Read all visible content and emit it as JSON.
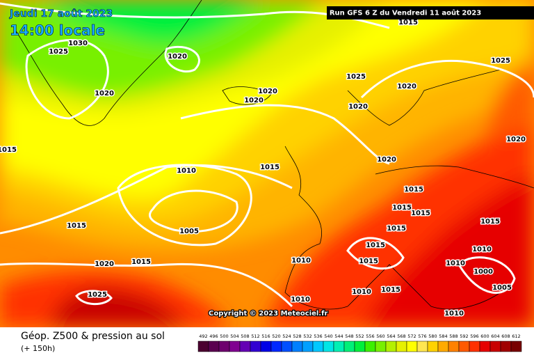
{
  "header": {
    "date": "Jeudi 17 août 2023",
    "time": "14:00 locale",
    "run": "Run GFS 6 Z du Vendredi 11 août 2023"
  },
  "copyright": "Copyright © 2023 Meteociel.fr",
  "footer": {
    "title": "Géop. Z500 & pression au sol",
    "lead": "(+ 150h)"
  },
  "isobar_labels": [
    "1030",
    "1025",
    "1020",
    "1020",
    "1020",
    "1020",
    "1025",
    "1020",
    "1025",
    "1020",
    "1020",
    "1020",
    "1015",
    "1015",
    "1010",
    "1005",
    "1015",
    "1015",
    "1015",
    "1015",
    "1015",
    "1015",
    "1015",
    "1015",
    "1010",
    "1010",
    "1010",
    "1000",
    "1005",
    "1020",
    "1015",
    "1025",
    "1015",
    "1010",
    "1010",
    "1010",
    "1015"
  ],
  "legend": {
    "values": [
      492,
      496,
      500,
      504,
      508,
      512,
      516,
      520,
      524,
      528,
      532,
      536,
      540,
      544,
      548,
      552,
      556,
      560,
      564,
      568,
      572,
      576,
      580,
      584,
      588,
      592,
      596,
      600,
      604,
      608,
      612
    ],
    "colors": [
      "#4b0030",
      "#5a0050",
      "#6e006e",
      "#800090",
      "#6400b4",
      "#3200d2",
      "#0000e6",
      "#0028ff",
      "#0050ff",
      "#0080ff",
      "#00a0ff",
      "#00c8ff",
      "#00e6e6",
      "#00f0b4",
      "#00f078",
      "#00f03c",
      "#3cf000",
      "#78f000",
      "#b4f000",
      "#e6f000",
      "#ffff00",
      "#ffe650",
      "#ffd200",
      "#ffaa00",
      "#ff8200",
      "#ff5a00",
      "#ff3200",
      "#e60000",
      "#c80000",
      "#a00000",
      "#780000"
    ]
  }
}
